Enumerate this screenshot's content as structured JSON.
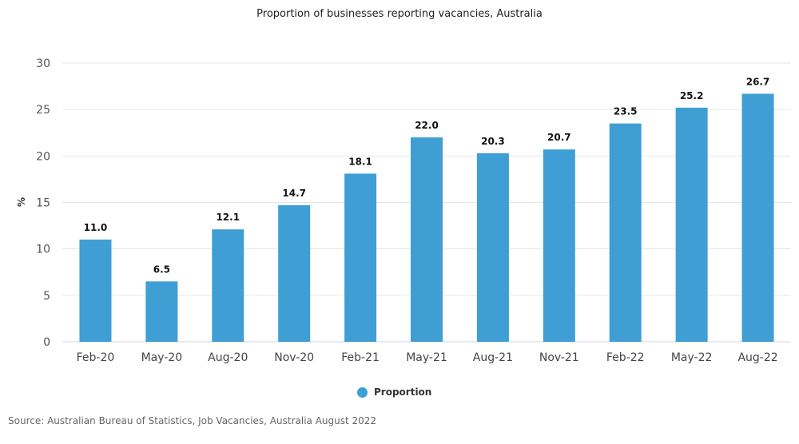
{
  "chart_data": {
    "type": "bar",
    "title": "Proportion of businesses reporting vacancies, Australia",
    "xlabel": "",
    "ylabel": "%",
    "ylim": [
      0,
      30
    ],
    "yticks": [
      0,
      5,
      10,
      15,
      20,
      25,
      30
    ],
    "grid": true,
    "categories": [
      "Feb-20",
      "May-20",
      "Aug-20",
      "Nov-20",
      "Feb-21",
      "May-21",
      "Aug-21",
      "Nov-21",
      "Feb-22",
      "May-22",
      "Aug-22"
    ],
    "series": [
      {
        "name": "Proportion",
        "values": [
          11.0,
          6.5,
          12.1,
          14.7,
          18.1,
          22.0,
          20.3,
          20.7,
          23.5,
          25.2,
          26.7
        ],
        "color": "#3f9fd4"
      }
    ],
    "legend": "bottom",
    "source": "Source: Australian Bureau of Statistics, Job Vacancies, Australia August 2022"
  }
}
